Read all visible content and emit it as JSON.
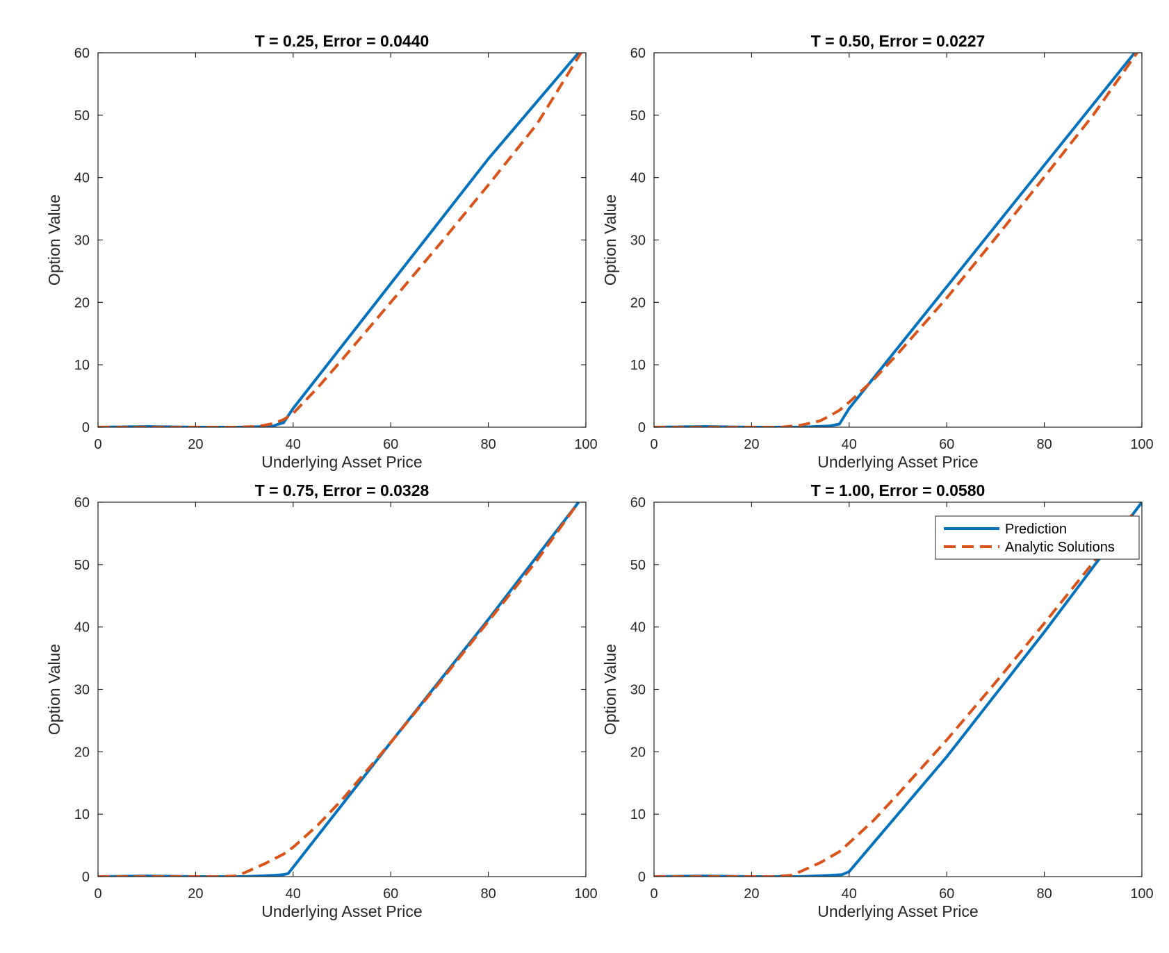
{
  "chart_data": [
    {
      "type": "line",
      "title": "T = 0.25, Error = 0.0440",
      "xlabel": "Underlying Asset Price",
      "ylabel": "Option Value",
      "xlim": [
        0,
        100
      ],
      "ylim": [
        0,
        60
      ],
      "xticks": [
        0,
        20,
        40,
        60,
        80,
        100
      ],
      "yticks": [
        0,
        10,
        20,
        30,
        40,
        50,
        60
      ],
      "grid": false,
      "series": [
        {
          "name": "Prediction",
          "color": "#0072BD",
          "style": "solid",
          "x": [
            0,
            10,
            20,
            30,
            34,
            36,
            37,
            38,
            40,
            60,
            80,
            98.5
          ],
          "y": [
            0,
            0.1,
            0,
            0,
            0.1,
            0.2,
            0.5,
            0.7,
            3,
            23,
            43,
            60
          ]
        },
        {
          "name": "Analytic Solutions",
          "color": "#D95319",
          "style": "dashed",
          "x": [
            0,
            10,
            20,
            28,
            32,
            34,
            36,
            38,
            40,
            45,
            50,
            60,
            70,
            80,
            90,
            99
          ],
          "y": [
            0,
            0,
            0,
            0,
            0.1,
            0.3,
            0.6,
            1.2,
            2.2,
            6.3,
            10.8,
            20,
            29.3,
            38.8,
            48.6,
            60
          ]
        }
      ]
    },
    {
      "type": "line",
      "title": "T = 0.50, Error = 0.0227",
      "xlabel": "Underlying Asset Price",
      "ylabel": "Option Value",
      "xlim": [
        0,
        100
      ],
      "ylim": [
        0,
        60
      ],
      "xticks": [
        0,
        20,
        40,
        60,
        80,
        100
      ],
      "yticks": [
        0,
        10,
        20,
        30,
        40,
        50,
        60
      ],
      "grid": false,
      "series": [
        {
          "name": "Prediction",
          "color": "#0072BD",
          "style": "solid",
          "x": [
            0,
            10,
            20,
            30,
            36,
            38,
            40,
            60,
            80,
            98.5
          ],
          "y": [
            0,
            0.1,
            0,
            0,
            0.2,
            0.5,
            3,
            22.5,
            42,
            60
          ]
        },
        {
          "name": "Analytic Solutions",
          "color": "#D95319",
          "style": "dashed",
          "x": [
            0,
            10,
            20,
            26,
            30,
            34,
            36,
            38,
            40,
            45,
            50,
            60,
            70,
            80,
            90,
            99
          ],
          "y": [
            0,
            0,
            0,
            0,
            0.3,
            1,
            1.8,
            2.7,
            4,
            7.6,
            11.8,
            20.7,
            30.3,
            40.1,
            50,
            60
          ]
        }
      ]
    },
    {
      "type": "line",
      "title": "T = 0.75, Error = 0.0328",
      "xlabel": "Underlying Asset Price",
      "ylabel": "Option Value",
      "xlim": [
        0,
        100
      ],
      "ylim": [
        0,
        60
      ],
      "xticks": [
        0,
        20,
        40,
        60,
        80,
        100
      ],
      "yticks": [
        0,
        10,
        20,
        30,
        40,
        50,
        60
      ],
      "grid": false,
      "series": [
        {
          "name": "Prediction",
          "color": "#0072BD",
          "style": "solid",
          "x": [
            0,
            10,
            20,
            30,
            36,
            38,
            39,
            60,
            80,
            98.5
          ],
          "y": [
            0,
            0.1,
            0,
            0,
            0.2,
            0.3,
            0.5,
            21.5,
            41.2,
            60
          ]
        },
        {
          "name": "Analytic Solutions",
          "color": "#D95319",
          "style": "dashed",
          "x": [
            0,
            10,
            20,
            25,
            28,
            30,
            34,
            38,
            40,
            45,
            50,
            60,
            70,
            80,
            90,
            98.5
          ],
          "y": [
            0,
            0,
            0,
            0,
            0.1,
            0.6,
            2,
            3.6,
            4.7,
            8.2,
            12.3,
            21.5,
            31.1,
            40.9,
            50.7,
            60
          ]
        }
      ]
    },
    {
      "type": "line",
      "title": "T = 1.00, Error = 0.0580",
      "xlabel": "Underlying Asset Price",
      "ylabel": "Option Value",
      "xlim": [
        0,
        100
      ],
      "ylim": [
        0,
        60
      ],
      "xticks": [
        0,
        20,
        40,
        60,
        80,
        100
      ],
      "yticks": [
        0,
        10,
        20,
        30,
        40,
        50,
        60
      ],
      "grid": false,
      "legend": {
        "location": "top-right",
        "entries": [
          "Prediction",
          "Analytic Solutions"
        ]
      },
      "series": [
        {
          "name": "Prediction",
          "color": "#0072BD",
          "style": "solid",
          "x": [
            0,
            10,
            20,
            30,
            36,
            38.5,
            40,
            60,
            80,
            100
          ],
          "y": [
            0,
            0.1,
            0,
            0,
            0.2,
            0.3,
            0.8,
            19.2,
            39.2,
            60
          ]
        },
        {
          "name": "Analytic Solutions",
          "color": "#D95319",
          "style": "dashed",
          "x": [
            0,
            10,
            20,
            24,
            28,
            30,
            34,
            38,
            40,
            45,
            50,
            60,
            70,
            80,
            90,
            98
          ],
          "y": [
            0,
            0,
            0,
            0,
            0.2,
            0.8,
            2.2,
            4,
            5.4,
            9,
            13.2,
            21.9,
            31.1,
            40.6,
            50.3,
            58
          ]
        }
      ]
    }
  ]
}
